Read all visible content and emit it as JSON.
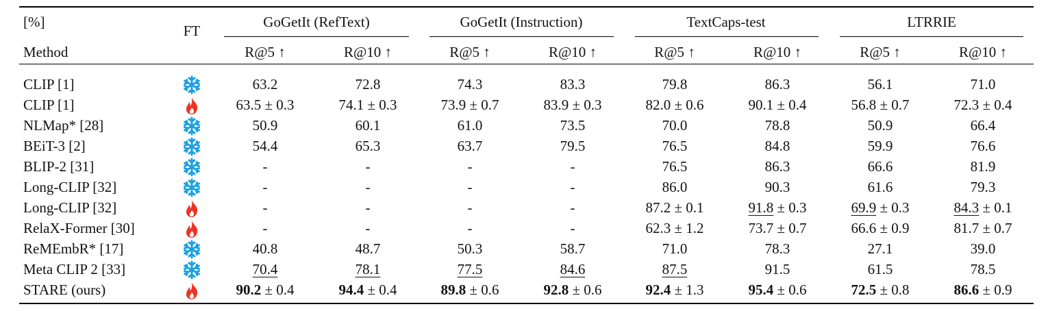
{
  "header": {
    "unit": "[%]",
    "method": "Method",
    "ft": "FT",
    "groups": [
      "GoGetIt (RefText)",
      "GoGetIt (Instruction)",
      "TextCaps-test",
      "LTRRIE"
    ],
    "metrics": [
      "R@5 ↑",
      "R@10 ↑",
      "R@5 ↑",
      "R@10 ↑",
      "R@5 ↑",
      "R@10 ↑",
      "R@5 ↑",
      "R@10 ↑"
    ]
  },
  "icons": {
    "frozen": "snowflake-icon",
    "finetuned": "flame-icon"
  },
  "rows": [
    {
      "method": "CLIP [1]",
      "ft": "frozen",
      "cells": [
        {
          "v": "63.2"
        },
        {
          "v": "72.8"
        },
        {
          "v": "74.3"
        },
        {
          "v": "83.3"
        },
        {
          "v": "79.8"
        },
        {
          "v": "86.3"
        },
        {
          "v": "56.1"
        },
        {
          "v": "71.0"
        }
      ]
    },
    {
      "method": "CLIP [1]",
      "ft": "finetuned",
      "cells": [
        {
          "v": "63.5",
          "pm": " ± 0.3"
        },
        {
          "v": "74.1",
          "pm": " ± 0.3"
        },
        {
          "v": "73.9",
          "pm": " ± 0.7"
        },
        {
          "v": "83.9",
          "pm": " ± 0.3"
        },
        {
          "v": "82.0",
          "pm": " ± 0.6"
        },
        {
          "v": "90.1",
          "pm": " ± 0.4"
        },
        {
          "v": "56.8",
          "pm": " ± 0.7"
        },
        {
          "v": "72.3",
          "pm": " ± 0.4"
        }
      ]
    },
    {
      "method": "NLMap* [28]",
      "ft": "frozen",
      "cells": [
        {
          "v": "50.9"
        },
        {
          "v": "60.1"
        },
        {
          "v": "61.0"
        },
        {
          "v": "73.5"
        },
        {
          "v": "70.0"
        },
        {
          "v": "78.8"
        },
        {
          "v": "50.9"
        },
        {
          "v": "66.4"
        }
      ]
    },
    {
      "method": "BEiT-3 [2]",
      "ft": "frozen",
      "cells": [
        {
          "v": "54.4"
        },
        {
          "v": "65.3"
        },
        {
          "v": "63.7"
        },
        {
          "v": "79.5"
        },
        {
          "v": "76.5"
        },
        {
          "v": "84.8"
        },
        {
          "v": "59.9"
        },
        {
          "v": "76.6"
        }
      ]
    },
    {
      "method": "BLIP-2 [31]",
      "ft": "frozen",
      "cells": [
        {
          "v": "-"
        },
        {
          "v": "-"
        },
        {
          "v": "-"
        },
        {
          "v": "-"
        },
        {
          "v": "76.5"
        },
        {
          "v": "86.3"
        },
        {
          "v": "66.6"
        },
        {
          "v": "81.9"
        }
      ]
    },
    {
      "method": "Long-CLIP [32]",
      "ft": "frozen",
      "cells": [
        {
          "v": "-"
        },
        {
          "v": "-"
        },
        {
          "v": "-"
        },
        {
          "v": "-"
        },
        {
          "v": "86.0"
        },
        {
          "v": "90.3"
        },
        {
          "v": "61.6"
        },
        {
          "v": "79.3"
        }
      ]
    },
    {
      "method": "Long-CLIP [32]",
      "ft": "finetuned",
      "cells": [
        {
          "v": "-"
        },
        {
          "v": "-"
        },
        {
          "v": "-"
        },
        {
          "v": "-"
        },
        {
          "v": "87.2",
          "pm": " ± 0.1"
        },
        {
          "v": "91.8",
          "pm": " ± 0.3",
          "u": true
        },
        {
          "v": "69.9",
          "pm": " ± 0.3",
          "u": true
        },
        {
          "v": "84.3",
          "pm": " ± 0.1",
          "u": true
        }
      ]
    },
    {
      "method": "RelaX-Former [30]",
      "ft": "finetuned",
      "cells": [
        {
          "v": "-"
        },
        {
          "v": "-"
        },
        {
          "v": "-"
        },
        {
          "v": "-"
        },
        {
          "v": "62.3",
          "pm": " ± 1.2"
        },
        {
          "v": "73.7",
          "pm": " ± 0.7"
        },
        {
          "v": "66.6",
          "pm": " ± 0.9"
        },
        {
          "v": "81.7",
          "pm": " ± 0.7"
        }
      ]
    },
    {
      "method": "ReMEmbR* [17]",
      "ft": "frozen",
      "cells": [
        {
          "v": "40.8"
        },
        {
          "v": "48.7"
        },
        {
          "v": "50.3"
        },
        {
          "v": "58.7"
        },
        {
          "v": "71.0"
        },
        {
          "v": "78.3"
        },
        {
          "v": "27.1"
        },
        {
          "v": "39.0"
        }
      ]
    },
    {
      "method": "Meta CLIP 2 [33]",
      "ft": "frozen",
      "cells": [
        {
          "v": "70.4",
          "u": true
        },
        {
          "v": "78.1",
          "u": true
        },
        {
          "v": "77.5",
          "u": true
        },
        {
          "v": "84.6",
          "u": true
        },
        {
          "v": "87.5",
          "u": true
        },
        {
          "v": "91.5"
        },
        {
          "v": "61.5"
        },
        {
          "v": "78.5"
        }
      ]
    },
    {
      "method": "STARE (ours)",
      "ft": "finetuned",
      "cells": [
        {
          "v": "90.2",
          "pm": " ± 0.4",
          "b": true
        },
        {
          "v": "94.4",
          "pm": " ± 0.4",
          "b": true
        },
        {
          "v": "89.8",
          "pm": " ± 0.6",
          "b": true
        },
        {
          "v": "92.8",
          "pm": " ± 0.6",
          "b": true
        },
        {
          "v": "92.4",
          "pm": " ± 1.3",
          "b": true
        },
        {
          "v": "95.4",
          "pm": " ± 0.6",
          "b": true
        },
        {
          "v": "72.5",
          "pm": " ± 0.8",
          "b": true
        },
        {
          "v": "86.6",
          "pm": " ± 0.9",
          "b": true
        }
      ]
    }
  ]
}
